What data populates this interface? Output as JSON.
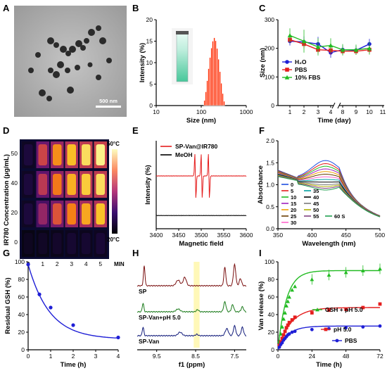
{
  "panel_labels": [
    "A",
    "B",
    "C",
    "D",
    "E",
    "F",
    "G",
    "H",
    "I"
  ],
  "panel_a": {
    "scalebar": "500 nm"
  },
  "chart_data": [
    {
      "panel": "B",
      "type": "bar",
      "xlabel": "Size (nm)",
      "ylabel": "Intensity (%)",
      "xscale": "log",
      "xlim": [
        10,
        1000
      ],
      "ylim": [
        0,
        20
      ],
      "xticks": [
        "10",
        "100",
        "1000"
      ],
      "yticks": [
        "0",
        "5",
        "10",
        "15",
        "20"
      ],
      "bins": [
        {
          "x": 118,
          "y": 1.2
        },
        {
          "x": 127,
          "y": 3.2
        },
        {
          "x": 136,
          "y": 5.8
        },
        {
          "x": 146,
          "y": 8.6
        },
        {
          "x": 157,
          "y": 11.2
        },
        {
          "x": 169,
          "y": 13.4
        },
        {
          "x": 181,
          "y": 15.0
        },
        {
          "x": 195,
          "y": 15.8
        },
        {
          "x": 209,
          "y": 15.1
        },
        {
          "x": 225,
          "y": 13.3
        },
        {
          "x": 242,
          "y": 10.8
        },
        {
          "x": 260,
          "y": 7.9
        },
        {
          "x": 279,
          "y": 5.2
        },
        {
          "x": 300,
          "y": 2.8
        },
        {
          "x": 322,
          "y": 1.0
        }
      ]
    },
    {
      "panel": "C",
      "type": "line",
      "xlabel": "Time (day)",
      "ylabel": "Size (nm)",
      "ylim": [
        0,
        300
      ],
      "yticks": [
        "0",
        "100",
        "200",
        "300"
      ],
      "xticks": [
        "1",
        "2",
        "3",
        "4",
        "8",
        "9",
        "10",
        "11"
      ],
      "axis_break": "between 4 and 8",
      "legend": "bottom-left",
      "series": [
        {
          "name": "H₂O",
          "color": "#1f1fd6",
          "marker": "circle",
          "x": [
            1,
            2,
            3,
            4,
            8,
            9,
            10
          ],
          "y": [
            225,
            222,
            215,
            185,
            195,
            193,
            215
          ],
          "err": [
            15,
            20,
            25,
            18,
            15,
            15,
            18
          ]
        },
        {
          "name": "PBS",
          "color": "#e51e1e",
          "marker": "square",
          "x": [
            1,
            2,
            3,
            4,
            8,
            9,
            10
          ],
          "y": [
            230,
            215,
            195,
            193,
            190,
            190,
            195
          ],
          "err": [
            12,
            15,
            14,
            15,
            12,
            12,
            14
          ]
        },
        {
          "name": "10% FBS",
          "color": "#22bb22",
          "marker": "triangle",
          "x": [
            1,
            2,
            3,
            4,
            8,
            9,
            10
          ],
          "y": [
            245,
            225,
            205,
            210,
            195,
            195,
            200
          ],
          "err": [
            25,
            40,
            30,
            25,
            20,
            18,
            22
          ]
        }
      ]
    },
    {
      "panel": "D",
      "type": "heatmap",
      "xlabel": "MIN",
      "ylabel": "IR780 Concentration (μg/mL)",
      "xticks": [
        "0",
        "1",
        "2",
        "3",
        "4",
        "5"
      ],
      "yticks": [
        "50",
        "40",
        "20",
        "0"
      ],
      "colorbar": [
        "50°C",
        "20°C"
      ],
      "intensity": [
        [
          0.1,
          0.55,
          0.75,
          0.85,
          0.92,
          0.97
        ],
        [
          0.1,
          0.5,
          0.7,
          0.82,
          0.88,
          0.92
        ],
        [
          0.1,
          0.4,
          0.6,
          0.72,
          0.8,
          0.86
        ],
        [
          0.05,
          0.06,
          0.07,
          0.08,
          0.08,
          0.09
        ]
      ]
    },
    {
      "panel": "E",
      "type": "line",
      "xlabel": "Magnetic field",
      "ylabel": "Intensity (%)",
      "xlim": [
        3400,
        3600
      ],
      "xticks": [
        "3400",
        "3450",
        "3500",
        "3550",
        "3600"
      ],
      "legend": "top",
      "series": [
        {
          "name": "SP-Van@IR780",
          "color": "#e51e1e",
          "baseline": 0.6,
          "peaks": [
            3487,
            3501,
            3517
          ],
          "amp": 0.26
        },
        {
          "name": "MeOH",
          "color": "#000000",
          "baseline": 0.15
        }
      ]
    },
    {
      "panel": "F",
      "type": "line",
      "xlabel": "Wavelength (nm)",
      "ylabel": "Absorbance",
      "xlim": [
        350,
        500
      ],
      "ylim": [
        0.0,
        2.0
      ],
      "xticks": [
        "350",
        "400",
        "450",
        "500"
      ],
      "yticks": [
        "0.0",
        "0.5",
        "1.0",
        "1.5",
        "2.0"
      ],
      "series_labels": [
        "0",
        "5",
        "10",
        "15",
        "20",
        "25",
        "30",
        "35",
        "40",
        "45",
        "50",
        "55",
        "60 S"
      ],
      "colors": [
        "#1f4fe0",
        "#e51e1e",
        "#22bb22",
        "#a020c0",
        "#f0a000",
        "#6a3d00",
        "#ff66cc",
        "#00a0a0",
        "#000000",
        "#7a7a7a",
        "#b0b000",
        "#804080",
        "#20a050"
      ],
      "peak_values": [
        1.55,
        1.48,
        1.42,
        1.36,
        1.3,
        1.24,
        1.18,
        1.12,
        1.06,
        1.0,
        0.96,
        0.92,
        0.88
      ]
    },
    {
      "panel": "G",
      "type": "line",
      "xlabel": "Time (h)",
      "ylabel": "Residual GSH (%)",
      "xlim": [
        0,
        4
      ],
      "ylim": [
        0,
        100
      ],
      "xticks": [
        "0",
        "1",
        "2",
        "3",
        "4"
      ],
      "yticks": [
        "0",
        "20",
        "40",
        "60",
        "80",
        "100"
      ],
      "series": [
        {
          "name": "",
          "color": "#1f1fd6",
          "x": [
            0,
            0.5,
            1,
            2,
            4
          ],
          "y": [
            97,
            63,
            48,
            28,
            14
          ]
        }
      ]
    },
    {
      "panel": "H",
      "type": "line",
      "xlabel": "f1 (ppm)",
      "xlim": [
        10.0,
        7.2
      ],
      "xticks": [
        "9.5",
        "8.5",
        "7.5"
      ],
      "highlight": [
        8.55,
        8.4
      ],
      "series": [
        {
          "name": "SP",
          "color": "#7a1010"
        },
        {
          "name": "SP-Van+pH 5.0",
          "color": "#1a7a1a"
        },
        {
          "name": "SP-Van",
          "color": "#101a7a"
        }
      ]
    },
    {
      "panel": "I",
      "type": "line",
      "xlabel": "Time (h)",
      "ylabel": "Van release (%)",
      "xlim": [
        0,
        72
      ],
      "ylim": [
        0,
        100
      ],
      "xticks": [
        "0",
        "24",
        "48",
        "72"
      ],
      "yticks": [
        "0",
        "20",
        "40",
        "60",
        "80",
        "100"
      ],
      "series": [
        {
          "name": "GSH + pH 5.0",
          "color": "#22bb22",
          "marker": "triangle",
          "x": [
            1,
            2,
            3,
            4,
            5,
            6,
            7,
            8,
            10,
            12,
            24,
            36,
            48,
            60,
            72
          ],
          "y": [
            10,
            18,
            26,
            35,
            42,
            50,
            55,
            60,
            68,
            72,
            80,
            85,
            88,
            90,
            92
          ],
          "cap": 90
        },
        {
          "name": "pH 5.0",
          "color": "#e51e1e",
          "marker": "square",
          "x": [
            1,
            2,
            3,
            4,
            5,
            6,
            7,
            8,
            10,
            12,
            24,
            36,
            48,
            60,
            72
          ],
          "y": [
            5,
            9,
            13,
            17,
            21,
            25,
            28,
            31,
            34,
            37,
            42,
            45,
            46,
            48,
            52
          ],
          "cap": 48
        },
        {
          "name": "PBS",
          "color": "#1f1fd6",
          "marker": "circle",
          "x": [
            1,
            2,
            3,
            4,
            5,
            6,
            7,
            8,
            10,
            12,
            24,
            36,
            48,
            60,
            72
          ],
          "y": [
            3,
            6,
            8,
            11,
            13,
            15,
            17,
            18,
            20,
            21,
            23,
            24,
            25,
            26,
            27
          ],
          "cap": 27
        }
      ]
    }
  ]
}
